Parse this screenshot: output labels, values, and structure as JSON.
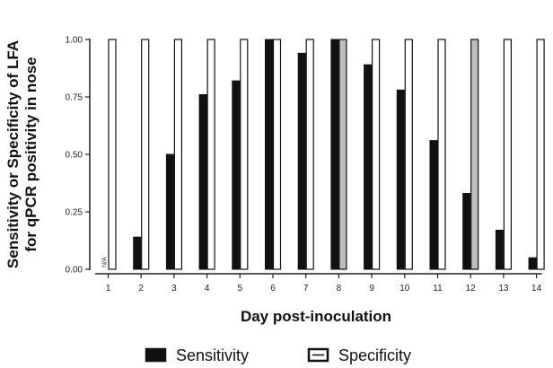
{
  "chart_data": {
    "type": "bar",
    "xlabel": "Day post-inoculation",
    "ylabel_line1": "Sensitivity or Specificity of LFA",
    "ylabel_line2": "for qPCR positivity in nose",
    "ylim": [
      0,
      1.0
    ],
    "yticks": [
      "0.00",
      "0.25",
      "0.50",
      "0.75",
      "1.00"
    ],
    "ytick_values": [
      0,
      0.25,
      0.5,
      0.75,
      1.0
    ],
    "categories": [
      "1",
      "2",
      "3",
      "4",
      "5",
      "6",
      "7",
      "8",
      "9",
      "10",
      "11",
      "12",
      "13",
      "14"
    ],
    "series": [
      {
        "name": "Sensitivity",
        "color": "#111111",
        "values": [
          null,
          0.14,
          0.5,
          0.76,
          0.82,
          1.0,
          0.94,
          1.0,
          0.89,
          0.78,
          0.56,
          0.33,
          0.17,
          0.05
        ]
      },
      {
        "name": "Specificity",
        "color": "#ffffff",
        "values": [
          1.0,
          1.0,
          1.0,
          1.0,
          1.0,
          1.0,
          1.0,
          1.0,
          1.0,
          1.0,
          1.0,
          1.0,
          1.0,
          1.0
        ]
      }
    ],
    "highlight_color": "#bdbdbd",
    "highlight_specificity_days": [
      "8",
      "12"
    ],
    "na_annotation": {
      "day": "1",
      "text": "N/A"
    },
    "grid": false,
    "legend_position": "bottom-center"
  }
}
